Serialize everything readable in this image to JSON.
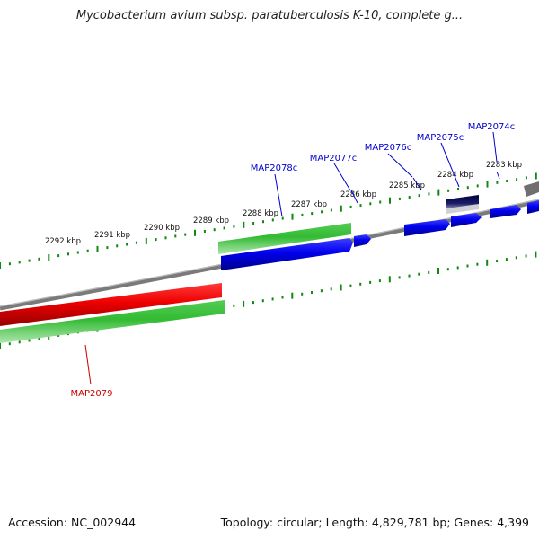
{
  "title": "Mycobacterium avium subsp. paratuberculosis K-10, complete g...",
  "footer": {
    "accession": "Accession: NC_002944",
    "summary": "Topology: circular; Length: 4,829,781 bp; Genes: 4,399"
  },
  "colors": {
    "forward_cds": "#0000dd",
    "reverse_cds": "#dd0000",
    "gc_content": "#33bb33",
    "backbone": "#808080",
    "tick": "#118811",
    "forward_label": "#0000cc",
    "reverse_label": "#cc0000"
  },
  "scale_ticks": [
    {
      "label": "2292 kbp"
    },
    {
      "label": "2291 kbp"
    },
    {
      "label": "2290 kbp"
    },
    {
      "label": "2289 kbp"
    },
    {
      "label": "2288 kbp"
    },
    {
      "label": "2287 kbp"
    },
    {
      "label": "2286 kbp"
    },
    {
      "label": "2285 kbp"
    },
    {
      "label": "2284 kbp"
    },
    {
      "label": "2283 kbp"
    }
  ],
  "gene_labels": [
    {
      "label": "MAP2078c",
      "strand": "forward"
    },
    {
      "label": "MAP2077c",
      "strand": "forward"
    },
    {
      "label": "MAP2076c",
      "strand": "forward"
    },
    {
      "label": "MAP2075c",
      "strand": "forward"
    },
    {
      "label": "MAP2074c",
      "strand": "forward"
    },
    {
      "label": "MAP2079",
      "strand": "reverse"
    }
  ]
}
